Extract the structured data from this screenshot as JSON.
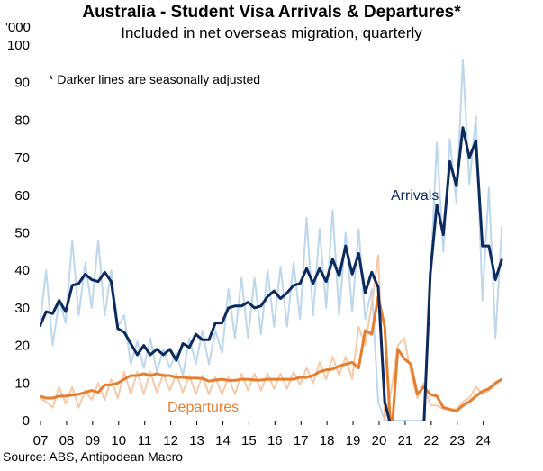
{
  "header": {
    "title": "Australia - Student Visa Arrivals & Departures*",
    "subtitle": "Included in net overseas migration, quarterly",
    "unit": "'000"
  },
  "footer": {
    "source": "Source: ABS, Antipodean Macro"
  },
  "chart_data": {
    "type": "line",
    "title": "Australia - Student Visa Arrivals & Departures*",
    "subtitle": "Included in net overseas migration, quarterly",
    "ylabel": "'000",
    "xlabel": "",
    "ylim": [
      0,
      100
    ],
    "yticks": [
      0,
      10,
      20,
      30,
      40,
      50,
      60,
      70,
      80,
      90,
      100
    ],
    "xlim": [
      2007.0,
      2024.875
    ],
    "xtick_labels": [
      "07",
      "08",
      "09",
      "10",
      "11",
      "12",
      "13",
      "14",
      "15",
      "16",
      "17",
      "18",
      "19",
      "20",
      "21",
      "22",
      "23",
      "24"
    ],
    "grid": false,
    "legend": "inline labels",
    "annotations": [
      "* Darker lines are seasonally adjusted"
    ],
    "colors": {
      "arrivals_sa": "#0d2a5e",
      "arrivals_raw": "#bdd7ec",
      "departures_sa": "#e67e30",
      "departures_raw": "#f6c9a8"
    },
    "x": [
      2007.0,
      2007.25,
      2007.5,
      2007.75,
      2008.0,
      2008.25,
      2008.5,
      2008.75,
      2009.0,
      2009.25,
      2009.5,
      2009.75,
      2010.0,
      2010.25,
      2010.5,
      2010.75,
      2011.0,
      2011.25,
      2011.5,
      2011.75,
      2012.0,
      2012.25,
      2012.5,
      2012.75,
      2013.0,
      2013.25,
      2013.5,
      2013.75,
      2014.0,
      2014.25,
      2014.5,
      2014.75,
      2015.0,
      2015.25,
      2015.5,
      2015.75,
      2016.0,
      2016.25,
      2016.5,
      2016.75,
      2017.0,
      2017.25,
      2017.5,
      2017.75,
      2018.0,
      2018.25,
      2018.5,
      2018.75,
      2019.0,
      2019.25,
      2019.5,
      2019.75,
      2020.0,
      2020.25,
      2020.5,
      2020.75,
      2021.0,
      2021.25,
      2021.5,
      2021.75,
      2022.0,
      2022.25,
      2022.5,
      2022.75,
      2023.0,
      2023.25,
      2023.5,
      2023.75,
      2024.0,
      2024.25,
      2024.5,
      2024.75
    ],
    "series": [
      {
        "name": "Arrivals",
        "key": "arrivals_raw",
        "values": [
          25,
          40,
          20,
          32,
          26,
          48,
          28,
          42,
          30,
          48,
          28,
          40,
          25,
          28,
          15,
          21,
          14,
          22,
          13,
          19,
          14,
          18,
          12,
          22,
          15,
          24,
          15,
          24,
          18,
          35,
          22,
          38,
          22,
          38,
          23,
          40,
          25,
          41,
          25,
          42,
          27,
          54,
          28,
          51,
          30,
          56,
          28,
          50,
          29,
          51,
          27,
          35,
          5,
          0,
          0,
          0,
          0,
          0,
          0,
          0,
          37,
          74,
          45,
          75,
          58,
          96,
          63,
          81,
          32,
          62,
          22,
          52
        ]
      },
      {
        "name": "Arrivals",
        "key": "arrivals_sa",
        "values": [
          25,
          29,
          28.5,
          32,
          29,
          36,
          36.5,
          39,
          37.5,
          37,
          39.5,
          37,
          24.5,
          23.5,
          20.5,
          17.5,
          20,
          17.5,
          19,
          17.5,
          19,
          16,
          20.5,
          19.5,
          23,
          21.5,
          21.5,
          26,
          26,
          30,
          30.5,
          30.5,
          31.5,
          30,
          30.5,
          33,
          34.5,
          32.5,
          34,
          36,
          36.5,
          40.5,
          36.5,
          40.5,
          37,
          43,
          38.5,
          46.5,
          39,
          44.5,
          34,
          39.5,
          35.5,
          5,
          -2,
          -2,
          -2,
          -2,
          -2,
          -2,
          39,
          57.5,
          49.5,
          69,
          62.5,
          78,
          70,
          74.5,
          46.5,
          46.5,
          37.5,
          43
        ]
      },
      {
        "name": "Departures",
        "key": "departures_raw",
        "values": [
          6,
          5,
          3.5,
          9,
          4.5,
          9,
          3.5,
          8,
          5.5,
          10,
          5.5,
          11,
          6,
          13,
          7,
          13,
          7,
          13,
          7.5,
          12.5,
          8,
          12.5,
          7.5,
          12,
          7,
          12,
          7,
          11.5,
          7,
          11.5,
          7,
          12.5,
          8,
          12.5,
          8,
          12.5,
          8.5,
          12.5,
          8.5,
          13,
          9.5,
          14,
          10,
          15.5,
          11,
          17,
          12,
          17,
          11,
          25,
          20,
          31,
          44,
          0,
          8,
          20,
          22,
          13,
          6,
          10,
          4,
          4,
          3,
          3,
          3,
          5,
          6,
          9,
          7,
          8,
          9.5,
          11
        ]
      },
      {
        "name": "Departures",
        "key": "departures_sa",
        "values": [
          6.5,
          6,
          6,
          6.5,
          6.5,
          6.8,
          7,
          7.5,
          8,
          7.5,
          9.5,
          9.5,
          10,
          11,
          12,
          12,
          12.5,
          12,
          12.5,
          12,
          12,
          11.5,
          11.5,
          11.3,
          11.3,
          11.2,
          10.5,
          10.8,
          11,
          10.7,
          10.7,
          11,
          11,
          10.8,
          10.8,
          11,
          11,
          11,
          11,
          11,
          11.5,
          11.5,
          12,
          13,
          13.5,
          13.7,
          14.5,
          15,
          15.5,
          14,
          24,
          23,
          33,
          25,
          -5,
          19,
          16.5,
          15,
          7,
          9,
          7,
          6.5,
          3.5,
          3,
          2.5,
          4,
          5,
          6.5,
          7.8,
          8.5,
          10,
          11
        ]
      }
    ],
    "labels": {
      "arrivals": "Arrivals",
      "departures": "Departures"
    }
  }
}
